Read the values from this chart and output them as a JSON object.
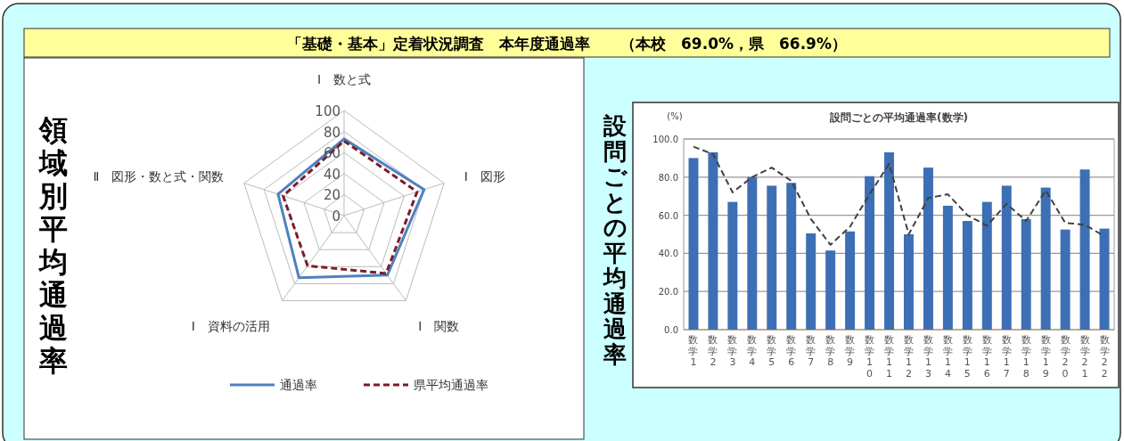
{
  "chart_data": [
    {
      "type": "radar",
      "title": "領域別平均通過率",
      "annotations": [
        "「基礎・基本」定着状況調査　本年度通過率　　（本校　69.0%，県　66.9%）"
      ],
      "categories": [
        "Ⅰ　数と式",
        "Ⅰ　図形",
        "Ⅰ　関数",
        "Ⅰ　資料の活用",
        "Ⅱ　図形・数と式・関数"
      ],
      "ylim": [
        0,
        100
      ],
      "yticks": [
        0,
        20,
        40,
        60,
        80,
        100
      ],
      "grid": true,
      "legend": "bottom",
      "series": [
        {
          "name": "通過率",
          "color": "#4f81bd",
          "line_style": "solid",
          "values": [
            73,
            80,
            70,
            73,
            66
          ]
        },
        {
          "name": "県平均通過率",
          "color": "#7b1c2a",
          "line_style": "dashed",
          "values": [
            71,
            73,
            68,
            59,
            61
          ]
        }
      ]
    },
    {
      "type": "bar",
      "title": "設問ごとの平均通過率(数学)",
      "ylabel": "(%)",
      "annotations": [
        "設問ごとの平均通過率"
      ],
      "categories": [
        "数学1",
        "数学2",
        "数学3",
        "数学4",
        "数学5",
        "数学6",
        "数学7",
        "数学8",
        "数学9",
        "数学10",
        "数学11",
        "数学12",
        "数学13",
        "数学14",
        "数学15",
        "数学16",
        "数学17",
        "数学18",
        "数学19",
        "数学20",
        "数学21",
        "数学22"
      ],
      "ylim": [
        0,
        100
      ],
      "yticks": [
        {
          "value": 0,
          "label": "0.0"
        },
        {
          "value": 20,
          "label": "20.0"
        },
        {
          "value": 40,
          "label": "40.0"
        },
        {
          "value": 60,
          "label": "60.0"
        },
        {
          "value": 80,
          "label": "80.0"
        },
        {
          "value": 100,
          "label": "100.0"
        }
      ],
      "grid": "y",
      "series": [
        {
          "type": "bar",
          "color": "#3d6fb5",
          "values": [
            90,
            93,
            67,
            80,
            75.5,
            77,
            50.5,
            41.5,
            51.5,
            80.5,
            93,
            50,
            85,
            65,
            57,
            67,
            75.5,
            58,
            74.5,
            52.5,
            84,
            53
          ]
        },
        {
          "type": "line",
          "color": "#404040",
          "line_style": "dashed",
          "marker": "none",
          "values": [
            96,
            92,
            72,
            80,
            85,
            78,
            58,
            44.5,
            54,
            71,
            87,
            50,
            69,
            71,
            60,
            54.5,
            66,
            57,
            73,
            56,
            55,
            49
          ]
        }
      ]
    }
  ]
}
